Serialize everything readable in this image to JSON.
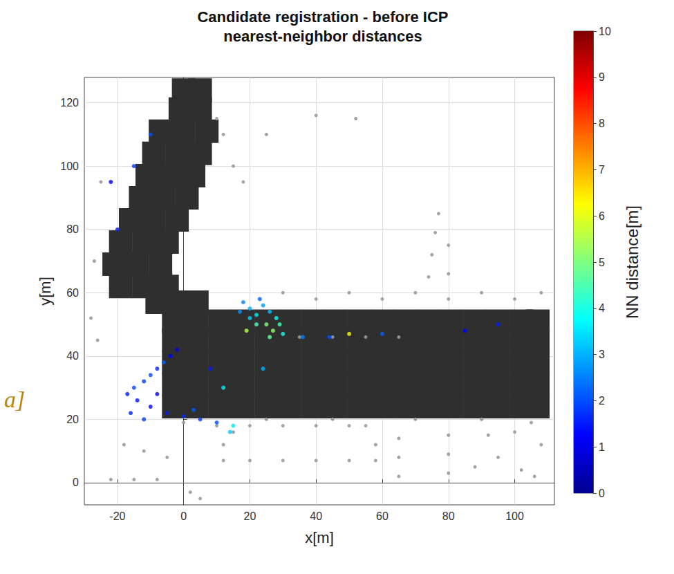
{
  "chart_data": {
    "type": "scatter",
    "title": "Candidate registration - before ICP",
    "subtitle": "nearest-neighbor distances",
    "x_label": "x[m]",
    "y_label": "y[m]",
    "xlim": [
      -30,
      112
    ],
    "ylim": [
      -7,
      128
    ],
    "xticks": [
      -20,
      0,
      20,
      40,
      60,
      80,
      100
    ],
    "yticks": [
      0,
      20,
      40,
      60,
      80,
      100,
      120
    ],
    "grid": true,
    "annotations": [
      {
        "text": "a]"
      }
    ],
    "colorbar": {
      "label": "NN distance[m]",
      "range": [
        0,
        10
      ],
      "ticks": [
        0,
        1,
        2,
        3,
        4,
        5,
        6,
        7,
        8,
        9,
        10
      ]
    },
    "series": [
      {
        "type": "scatter",
        "color": "#2f2f2f",
        "marker": "square",
        "x": [
          -3,
          4,
          11,
          18,
          25,
          32,
          39,
          46,
          53,
          60,
          67,
          74,
          81,
          88,
          95,
          102,
          107,
          -3,
          4,
          11,
          18,
          25,
          32,
          39,
          46,
          53,
          60,
          67,
          74,
          81,
          88,
          95,
          102,
          107,
          -3,
          4,
          11,
          18,
          25,
          32,
          39,
          46,
          53,
          60,
          67,
          74,
          81,
          88,
          95,
          102,
          107,
          -3,
          4,
          11,
          18,
          25,
          32,
          39,
          46,
          53,
          60,
          67,
          74,
          81,
          88,
          95,
          102,
          107,
          -3,
          4,
          11,
          18,
          25,
          32,
          39,
          46,
          53,
          60,
          67,
          74,
          81,
          88,
          95,
          102,
          107,
          -8,
          -2,
          4,
          -19,
          -12,
          -5,
          -21,
          -14,
          -7,
          -19,
          -12,
          -5,
          -16,
          -9,
          -2,
          -13,
          -6,
          1,
          -11,
          -4,
          3,
          -9,
          -2,
          5,
          -7,
          0,
          7,
          -1,
          5,
          0,
          5
        ],
        "y": [
          24,
          24,
          24,
          24,
          24,
          24,
          24,
          24,
          24,
          24,
          24,
          24,
          24,
          24,
          24,
          24,
          24,
          31,
          31,
          31,
          31,
          31,
          31,
          31,
          31,
          31,
          31,
          31,
          31,
          31,
          31,
          31,
          31,
          31,
          38,
          38,
          38,
          38,
          38,
          38,
          38,
          38,
          38,
          38,
          38,
          38,
          38,
          38,
          38,
          38,
          38,
          45,
          45,
          45,
          45,
          45,
          45,
          45,
          45,
          45,
          45,
          45,
          45,
          45,
          45,
          45,
          45,
          45,
          51,
          51,
          51,
          51,
          51,
          51,
          51,
          51,
          51,
          51,
          51,
          51,
          51,
          51,
          51,
          51,
          51,
          57,
          57,
          57,
          62,
          62,
          62,
          69,
          69,
          69,
          76,
          76,
          76,
          83,
          83,
          83,
          90,
          90,
          90,
          97,
          97,
          97,
          104,
          104,
          104,
          111,
          111,
          111,
          118,
          118,
          124,
          124
        ]
      },
      {
        "type": "scatter",
        "color": "#9a9a9a",
        "marker": "circle",
        "x": [
          10,
          20,
          30,
          40,
          50,
          55,
          12,
          20,
          30,
          40,
          50,
          58,
          12,
          58,
          15,
          65,
          65,
          65,
          80,
          80,
          80,
          88,
          95,
          102,
          108,
          92,
          100,
          106,
          -22,
          -15,
          -8,
          -12,
          -5,
          2,
          5,
          -18,
          10,
          12,
          15,
          18,
          25,
          40,
          52,
          30,
          40,
          50,
          60,
          70,
          80,
          90,
          100,
          108,
          74,
          75,
          76,
          77,
          80,
          80,
          -28,
          -26,
          -25,
          -27,
          35,
          45,
          55,
          65,
          0,
          25,
          45,
          70,
          90,
          105
        ],
        "y": [
          18,
          18,
          18,
          18,
          18,
          18,
          7,
          7,
          7,
          7,
          7,
          7,
          12,
          12,
          16,
          2,
          8,
          14,
          3,
          9,
          15,
          5,
          8,
          4,
          12,
          15,
          16,
          2,
          1,
          1,
          1,
          10,
          8,
          -3,
          -5,
          12,
          115,
          110,
          100,
          95,
          110,
          116,
          115,
          60,
          58,
          60,
          58,
          60,
          58,
          60,
          58,
          60,
          65,
          72,
          79,
          85,
          66,
          75,
          52,
          45,
          95,
          70,
          46,
          46,
          46,
          46,
          19,
          20,
          20,
          20,
          20,
          19
        ]
      },
      {
        "type": "scatter",
        "marker": "circle",
        "x": [
          18,
          20,
          22,
          24,
          26,
          28,
          22,
          25,
          27,
          29,
          20,
          17,
          23,
          30,
          26,
          19,
          -17,
          -12,
          -8,
          -4,
          -14,
          -10,
          -5,
          0,
          5,
          10,
          -15,
          -6,
          -2,
          -10,
          -16,
          -12,
          3,
          8,
          -8,
          15,
          14,
          12,
          24,
          50,
          44,
          36,
          60,
          85,
          95,
          -20,
          -15,
          -22,
          -10
        ],
        "y": [
          57,
          55,
          53,
          56,
          54,
          52,
          50,
          50,
          48,
          50,
          52,
          54,
          58,
          47,
          46,
          48,
          28,
          32,
          36,
          40,
          26,
          24,
          22,
          21,
          20,
          19,
          30,
          38,
          42,
          34,
          22,
          20,
          23,
          36,
          28,
          18,
          16,
          30,
          36,
          47,
          46,
          46,
          47,
          48,
          50,
          80,
          100,
          95,
          110
        ],
        "nn_distance": [
          2.5,
          3,
          3.5,
          2.8,
          3.2,
          3.8,
          4.5,
          5,
          5.2,
          4.5,
          3.3,
          2.7,
          2.2,
          3.9,
          4.8,
          5.5,
          1.5,
          1.8,
          1.6,
          1.2,
          1.4,
          1.3,
          1.5,
          1.7,
          1.8,
          2,
          1.9,
          2.2,
          1.0,
          2.0,
          1.6,
          1.8,
          2.1,
          1.5,
          1.2,
          3.5,
          3.2,
          3.6,
          3,
          6.2,
          2,
          2.5,
          2.2,
          1.2,
          1.5,
          1.5,
          1.8,
          1.2,
          2
        ]
      }
    ]
  }
}
